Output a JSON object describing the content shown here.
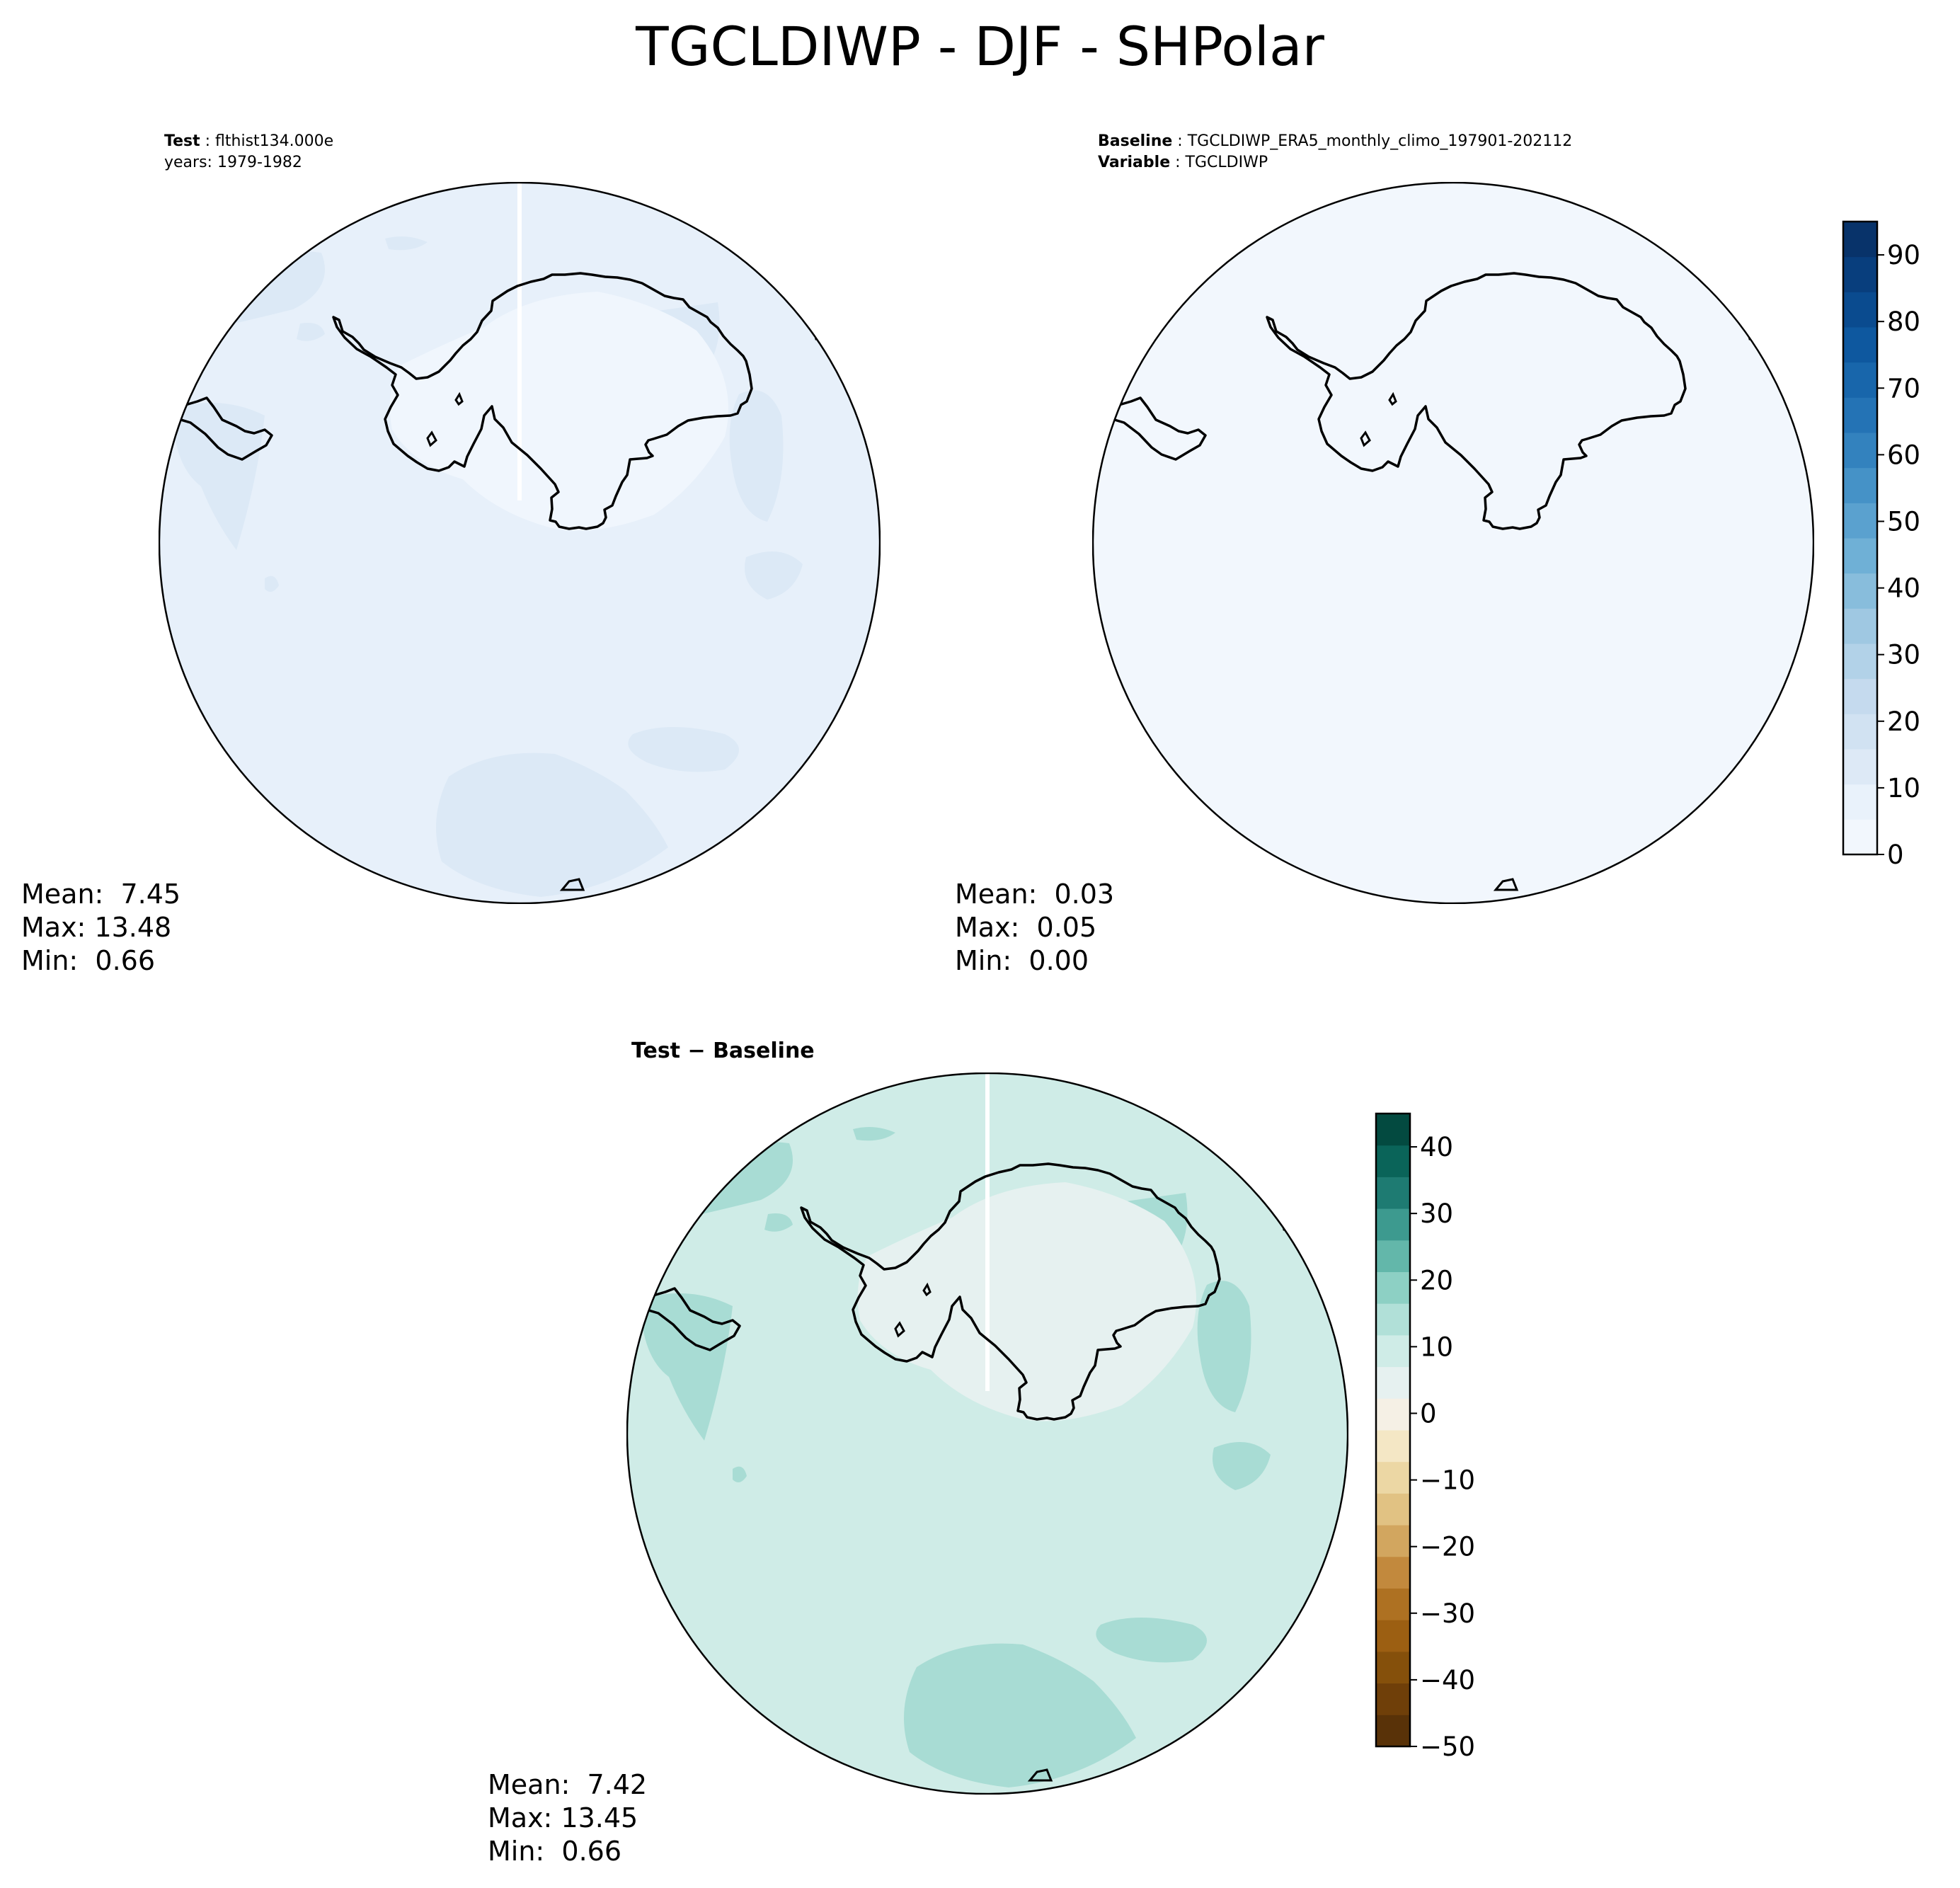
{
  "figure": {
    "title": "TGCLDIWP - DJF - SHPolar"
  },
  "panels": {
    "test": {
      "label": "Test",
      "case": "flthist134.000e",
      "years_label": "years",
      "years": "1979-1982",
      "stats": {
        "mean": "Mean:  7.45",
        "max": "Max: 13.48",
        "min": "Min:  0.66"
      }
    },
    "baseline": {
      "label": "Baseline",
      "case": "TGCLDIWP_ERA5_monthly_climo_197901-202112",
      "variable_label": "Variable",
      "variable": "TGCLDIWP",
      "stats": {
        "mean": "Mean:  0.03",
        "max": "Max:  0.05",
        "min": "Min:  0.00"
      }
    },
    "diff": {
      "title_left": "Test",
      "title_sep": " − ",
      "title_right": "Baseline",
      "stats": {
        "mean": "Mean:  7.42",
        "max": "Max: 13.45",
        "min": "Min:  0.66"
      }
    }
  },
  "chart_data": [
    {
      "type": "heatmap",
      "panel": "test",
      "projection": "south-polar-stereographic",
      "colormap": "Blues",
      "mean": 7.45,
      "max": 13.48,
      "min": 0.66,
      "field_colors": [
        "#e7f0fa",
        "#dce9f6",
        "#f0f6fd"
      ]
    },
    {
      "type": "heatmap",
      "panel": "baseline",
      "projection": "south-polar-stereographic",
      "colormap": "Blues",
      "mean": 0.03,
      "max": 0.05,
      "min": 0.0,
      "field_colors": [
        "#f2f7fd"
      ]
    },
    {
      "type": "heatmap",
      "panel": "diff",
      "projection": "south-polar-stereographic",
      "colormap": "BrBG",
      "mean": 7.42,
      "max": 13.45,
      "min": 0.66,
      "field_colors": [
        "#cfece7",
        "#a8dcd4",
        "#e6f1f0"
      ]
    }
  ],
  "colorbars": {
    "main": {
      "ticks": [
        0,
        10,
        20,
        30,
        40,
        50,
        60,
        70,
        80,
        90
      ],
      "range": [
        0,
        95
      ],
      "levels": 19,
      "colors": [
        "#f2f7fd",
        "#e9f2fb",
        "#dde9f6",
        "#d1e2f2",
        "#c5daee",
        "#b2d2e8",
        "#9fc8e2",
        "#88bddc",
        "#6fb0d6",
        "#5aa1cf",
        "#4592c7",
        "#3382be",
        "#2473b5",
        "#1866ab",
        "#0e589f",
        "#0a4b8f",
        "#083e7d",
        "#08336a"
      ]
    },
    "diff": {
      "ticks": [
        "40",
        "30",
        "20",
        "10",
        "0",
        "−10",
        "−20",
        "−30",
        "−40",
        "−50"
      ],
      "range": [
        -50,
        45
      ],
      "colors": [
        "#593208",
        "#6f3f09",
        "#85500b",
        "#9c5f12",
        "#ae7122",
        "#c2893d",
        "#d2a65f",
        "#e1c283",
        "#ecd7a4",
        "#f4e7c5",
        "#f5f0e5",
        "#e6f1f0",
        "#cfece7",
        "#b1e0d8",
        "#8dd0c4",
        "#63b7aa",
        "#3d9a8f",
        "#1e7b72",
        "#0a6459",
        "#034a40"
      ]
    }
  }
}
